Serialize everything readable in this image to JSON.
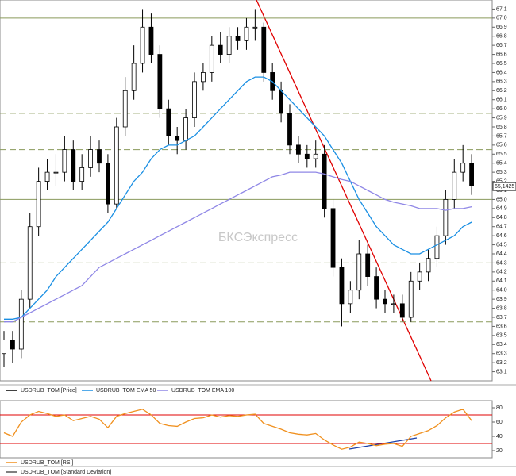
{
  "chart_data": [
    {
      "type": "candlestick",
      "ylim": [
        63.0,
        67.2
      ],
      "yticks": [
        {
          "value": 63.1,
          "label": "63,1"
        },
        {
          "value": 63.2,
          "label": "63,2"
        },
        {
          "value": 63.3,
          "label": "63,3"
        },
        {
          "value": 63.4,
          "label": "63,4"
        },
        {
          "value": 63.5,
          "label": "63,5"
        },
        {
          "value": 63.6,
          "label": "63,6"
        },
        {
          "value": 63.7,
          "label": "63,7"
        },
        {
          "value": 63.8,
          "label": "63,8"
        },
        {
          "value": 63.9,
          "label": "63,9"
        },
        {
          "value": 64.0,
          "label": "64,0"
        },
        {
          "value": 64.1,
          "label": "64,1"
        },
        {
          "value": 64.2,
          "label": "64,2"
        },
        {
          "value": 64.3,
          "label": "64,3"
        },
        {
          "value": 64.4,
          "label": "64,4"
        },
        {
          "value": 64.5,
          "label": "64,5"
        },
        {
          "value": 64.6,
          "label": "64,6"
        },
        {
          "value": 64.7,
          "label": "64,7"
        },
        {
          "value": 64.8,
          "label": "64,8"
        },
        {
          "value": 64.9,
          "label": "64,9"
        },
        {
          "value": 65.0,
          "label": "65,0"
        },
        {
          "value": 65.1,
          "label": "65,1"
        },
        {
          "value": 65.2,
          "label": "65,2"
        },
        {
          "value": 65.3,
          "label": "65,3"
        },
        {
          "value": 65.4,
          "label": "65,4"
        },
        {
          "value": 65.5,
          "label": "65,5"
        },
        {
          "value": 65.6,
          "label": "65,6"
        },
        {
          "value": 65.7,
          "label": "65,7"
        },
        {
          "value": 65.8,
          "label": "65,8"
        },
        {
          "value": 65.9,
          "label": "65,9"
        },
        {
          "value": 66.0,
          "label": "66,0"
        },
        {
          "value": 66.1,
          "label": "66,1"
        },
        {
          "value": 66.2,
          "label": "66,2"
        },
        {
          "value": 66.3,
          "label": "66,3"
        },
        {
          "value": 66.4,
          "label": "66,4"
        },
        {
          "value": 66.5,
          "label": "66,5"
        },
        {
          "value": 66.6,
          "label": "66,6"
        },
        {
          "value": 66.7,
          "label": "66,7"
        },
        {
          "value": 66.8,
          "label": "66,8"
        },
        {
          "value": 66.9,
          "label": "66,9"
        },
        {
          "value": 67.0,
          "label": "67,0"
        },
        {
          "value": 67.1,
          "label": "67,1"
        }
      ],
      "levels": [
        {
          "value": 67.0,
          "style": "solid"
        },
        {
          "value": 65.95,
          "style": "dashed"
        },
        {
          "value": 65.55,
          "style": "dashed"
        },
        {
          "value": 65.0,
          "style": "solid"
        },
        {
          "value": 64.3,
          "style": "dashed"
        },
        {
          "value": 63.65,
          "style": "dashed"
        }
      ],
      "level_color": "#8a9a5b",
      "last_price": {
        "value": 65.1425,
        "label": "65,1425"
      },
      "watermark": "БКСЭкспресс",
      "series": [
        {
          "name": "USDRUB_TOM [Price]",
          "color": "#000000",
          "open": [
            63.3,
            63.45,
            63.35,
            63.9,
            64.7,
            65.2,
            65.3,
            65.3,
            65.55,
            65.2,
            65.35,
            65.55,
            65.4,
            64.95,
            65.8,
            66.2,
            66.5,
            66.9,
            66.6,
            66.0,
            65.7,
            65.65,
            65.9,
            66.3,
            66.4,
            66.7,
            66.6,
            66.8,
            66.75,
            66.9,
            66.9,
            66.4,
            66.2,
            65.95,
            65.6,
            65.5,
            65.45,
            65.5,
            64.9,
            64.25,
            63.85,
            64.0,
            64.4,
            64.15,
            63.9,
            63.85,
            63.85,
            63.7,
            64.1,
            64.2,
            64.35,
            64.6,
            65.0,
            65.3,
            65.4
          ],
          "high": [
            63.55,
            63.55,
            64.0,
            64.85,
            65.35,
            65.45,
            65.5,
            65.7,
            65.65,
            65.5,
            65.7,
            65.65,
            65.5,
            65.9,
            66.35,
            66.7,
            67.1,
            67.05,
            66.7,
            66.1,
            65.8,
            66.0,
            66.4,
            66.5,
            66.8,
            66.85,
            66.9,
            66.9,
            67.0,
            67.1,
            66.95,
            66.5,
            66.3,
            66.05,
            65.7,
            65.6,
            65.65,
            65.6,
            65.0,
            64.35,
            64.1,
            64.55,
            64.5,
            64.25,
            64.0,
            63.95,
            63.95,
            64.2,
            64.3,
            64.45,
            64.7,
            65.1,
            65.45,
            65.6,
            65.5
          ],
          "low": [
            63.15,
            63.2,
            63.25,
            63.8,
            64.6,
            65.1,
            65.15,
            65.2,
            65.1,
            65.1,
            65.25,
            65.3,
            64.85,
            64.9,
            65.7,
            66.1,
            66.4,
            66.5,
            65.9,
            65.6,
            65.5,
            65.55,
            65.8,
            66.2,
            66.3,
            66.5,
            66.5,
            66.65,
            66.65,
            66.75,
            66.3,
            66.1,
            65.85,
            65.5,
            65.4,
            65.35,
            65.35,
            64.8,
            64.15,
            63.6,
            63.75,
            63.9,
            64.05,
            63.8,
            63.75,
            63.75,
            63.65,
            63.65,
            64.0,
            64.1,
            64.25,
            64.5,
            64.9,
            65.2,
            65.05
          ],
          "close": [
            63.45,
            63.35,
            63.9,
            64.7,
            65.2,
            65.3,
            65.3,
            65.55,
            65.2,
            65.35,
            65.55,
            65.4,
            64.95,
            65.8,
            66.2,
            66.5,
            66.9,
            66.6,
            66.0,
            65.7,
            65.65,
            65.9,
            66.3,
            66.4,
            66.7,
            66.6,
            66.8,
            66.75,
            66.9,
            66.9,
            66.4,
            66.2,
            65.95,
            65.6,
            65.5,
            65.45,
            65.5,
            64.9,
            64.25,
            63.85,
            64.0,
            64.4,
            64.15,
            63.9,
            63.85,
            63.85,
            63.7,
            64.1,
            64.2,
            64.35,
            64.6,
            65.0,
            65.3,
            65.4,
            65.15
          ]
        },
        {
          "name": "USDRUB_TOM EMA 50",
          "color": "#1a8fe3",
          "values": [
            63.68,
            63.68,
            63.7,
            63.8,
            63.9,
            64.0,
            64.15,
            64.25,
            64.35,
            64.45,
            64.55,
            64.65,
            64.75,
            64.9,
            65.05,
            65.2,
            65.3,
            65.45,
            65.55,
            65.6,
            65.6,
            65.65,
            65.7,
            65.8,
            65.9,
            66.0,
            66.1,
            66.2,
            66.3,
            66.35,
            66.35,
            66.3,
            66.2,
            66.1,
            66.0,
            65.9,
            65.8,
            65.7,
            65.55,
            65.4,
            65.2,
            65.0,
            64.85,
            64.7,
            64.6,
            64.5,
            64.45,
            64.4,
            64.4,
            64.45,
            64.5,
            64.55,
            64.6,
            64.7,
            64.75
          ]
        },
        {
          "name": "USDRUB_TOM EMA 100",
          "color": "#8f87e6",
          "values": [
            63.65,
            63.65,
            63.7,
            63.75,
            63.8,
            63.85,
            63.9,
            63.95,
            64.0,
            64.05,
            64.15,
            64.25,
            64.3,
            64.35,
            64.4,
            64.45,
            64.5,
            64.55,
            64.6,
            64.65,
            64.7,
            64.75,
            64.8,
            64.85,
            64.9,
            64.95,
            65.0,
            65.05,
            65.1,
            65.15,
            65.2,
            65.25,
            65.27,
            65.3,
            65.3,
            65.3,
            65.3,
            65.28,
            65.25,
            65.22,
            65.2,
            65.15,
            65.1,
            65.05,
            65.0,
            64.97,
            64.95,
            64.93,
            64.9,
            64.9,
            64.9,
            64.88,
            64.9,
            64.9,
            64.92
          ]
        }
      ]
    },
    {
      "type": "line",
      "ylim": [
        10,
        90
      ],
      "yticks": [
        20,
        40,
        60,
        80
      ],
      "levels": [
        70,
        30
      ],
      "level_color": "#e00000",
      "series": [
        {
          "name": "USDRUB_TOM [RSI]",
          "color": "#f0901e",
          "values": [
            45,
            40,
            60,
            70,
            75,
            72,
            68,
            70,
            62,
            65,
            68,
            64,
            52,
            68,
            72,
            75,
            78,
            70,
            58,
            55,
            54,
            60,
            65,
            66,
            70,
            67,
            69,
            68,
            70,
            71,
            58,
            54,
            50,
            45,
            43,
            42,
            44,
            35,
            28,
            22,
            25,
            32,
            30,
            27,
            29,
            30,
            26,
            40,
            44,
            48,
            55,
            66,
            74,
            78,
            62
          ]
        }
      ]
    },
    {
      "type": "line",
      "series": [
        {
          "name": "USDRUB_TOM [Standard Deviation]",
          "color": "#555555"
        }
      ]
    }
  ]
}
